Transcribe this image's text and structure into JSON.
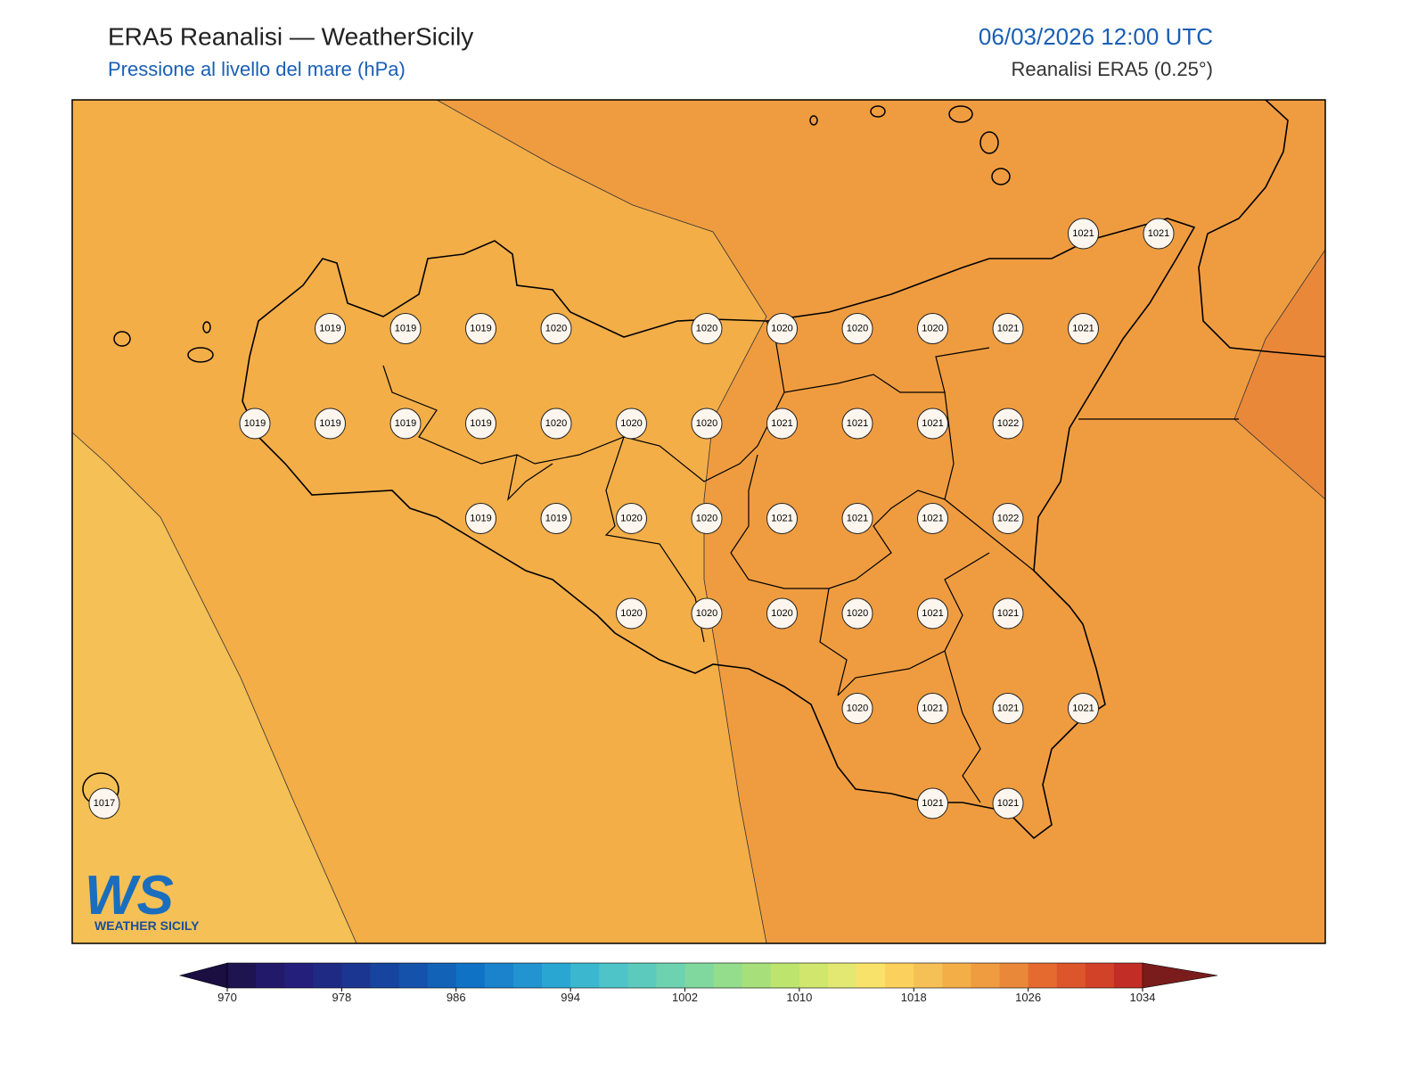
{
  "header": {
    "title": "ERA5 Reanalisi — WeatherSicily",
    "subtitle": "Pressione al livello del mare (hPa)",
    "datetime": "06/03/2026 12:00 UTC",
    "source": "Reanalisi ERA5 (0.25°)"
  },
  "stations": [
    [
      null,
      null,
      null,
      null,
      null,
      null,
      null,
      null,
      null,
      null,
      null,
      null,
      null,
      1021,
      1021
    ],
    [
      null,
      null,
      null,
      1019,
      1019,
      1019,
      1020,
      null,
      1020,
      1020,
      1020,
      1020,
      1021,
      1021,
      null
    ],
    [
      null,
      null,
      1019,
      1019,
      1019,
      1019,
      1020,
      1020,
      1020,
      1021,
      1021,
      1021,
      1022,
      null,
      null
    ],
    [
      null,
      null,
      null,
      null,
      null,
      1019,
      1019,
      1020,
      1020,
      1021,
      1021,
      1021,
      1022,
      null,
      null
    ],
    [
      null,
      null,
      null,
      null,
      null,
      null,
      null,
      1020,
      1020,
      1020,
      1020,
      1021,
      1021,
      null,
      null
    ],
    [
      null,
      null,
      null,
      null,
      null,
      null,
      null,
      null,
      null,
      null,
      1020,
      1021,
      1021,
      1021,
      null
    ],
    [
      1017,
      null,
      null,
      null,
      null,
      null,
      null,
      null,
      null,
      null,
      null,
      1021,
      1021,
      null,
      null
    ]
  ],
  "colorbar": {
    "range": [
      970,
      1034
    ],
    "levels": [
      970,
      972,
      974,
      976,
      978,
      980,
      982,
      984,
      986,
      988,
      990,
      992,
      994,
      996,
      998,
      1000,
      1002,
      1004,
      1006,
      1008,
      1010,
      1012,
      1014,
      1016,
      1018,
      1020,
      1022,
      1024,
      1026,
      1028,
      1030,
      1032
    ],
    "colors": [
      "#1e1450",
      "#22196a",
      "#241f7a",
      "#1f2a85",
      "#1a3690",
      "#16449e",
      "#1452ab",
      "#1262b8",
      "#1072c4",
      "#1a83cc",
      "#2294d0",
      "#2aa6d3",
      "#3bb8d0",
      "#4ec4c8",
      "#5ccbbd",
      "#6dd2b0",
      "#80d89e",
      "#93dd8c",
      "#a7e07a",
      "#bde46c",
      "#d0e66c",
      "#e2e872",
      "#f9e26a",
      "#fbd05c",
      "#f5c055",
      "#f3ae48",
      "#ef9c40",
      "#ea883a",
      "#e56a30",
      "#dd552b",
      "#d24228",
      "#c22e26"
    ],
    "under": "#1a0f40",
    "over": "#7a1c1c",
    "ticks": [
      970,
      978,
      986,
      994,
      1002,
      1010,
      1018,
      1026,
      1034
    ]
  },
  "logo": {
    "mark": "WS",
    "name": "WEATHER SICILY"
  }
}
